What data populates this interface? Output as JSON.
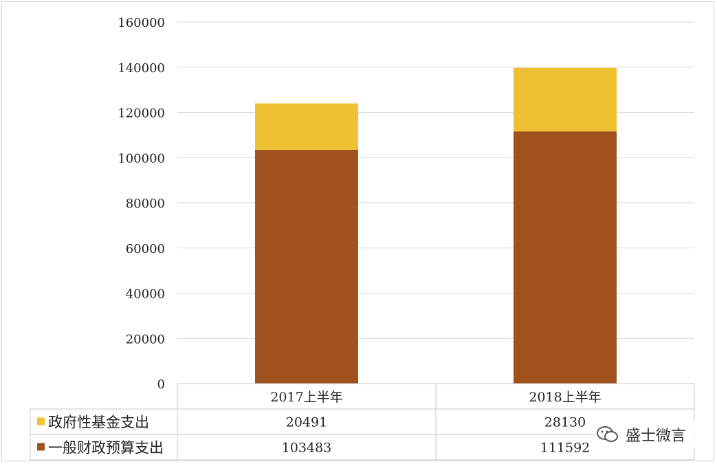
{
  "chart_data": {
    "type": "bar",
    "stacked": true,
    "categories": [
      "2017上半年",
      "2018上半年"
    ],
    "series": [
      {
        "name": "一般财政预算支出",
        "values": [
          103483,
          111592
        ],
        "color": "#A0521E"
      },
      {
        "name": "政府性基金支出",
        "values": [
          20491,
          28130
        ],
        "color": "#EFC132"
      }
    ],
    "ylim": [
      0,
      160000
    ],
    "yticks": [
      "0",
      "20000",
      "40000",
      "60000",
      "80000",
      "100000",
      "120000",
      "140000",
      "160000"
    ],
    "grid": true,
    "data_table": true,
    "table_rows": [
      {
        "name": "政府性基金支出",
        "values": [
          "20491",
          "28130"
        ],
        "color": "#EFC132"
      },
      {
        "name": "一般财政预算支出",
        "values": [
          "103483",
          "111592"
        ],
        "color": "#A0521E"
      }
    ]
  },
  "watermark": {
    "text": "盛士微言",
    "icon": "wechat-icon"
  }
}
